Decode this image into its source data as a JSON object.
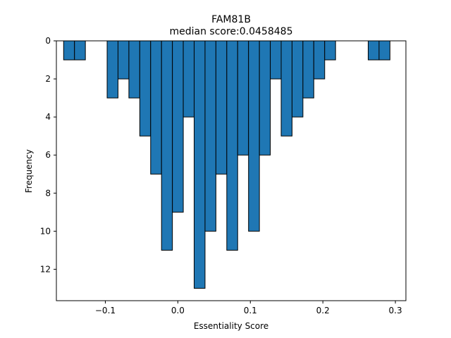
{
  "chart_data": {
    "type": "bar",
    "title": "FAM81B",
    "subtitle": "median score:0.0458485",
    "xlabel": "Essentiality Score",
    "ylabel": "Frequency",
    "xlim": [
      -0.1675,
      0.3145
    ],
    "ylim": [
      0,
      13.65
    ],
    "y_inverted": true,
    "grid": false,
    "bar_color": "#1f77b4",
    "edge_color": "#000000",
    "bin_width": 0.015,
    "xticks": [
      -0.1,
      0.0,
      0.1,
      0.2,
      0.3
    ],
    "xtick_labels": [
      "−0.1",
      "0.0",
      "0.1",
      "0.2",
      "0.3"
    ],
    "yticks": [
      0,
      2,
      4,
      6,
      8,
      10,
      12
    ],
    "ytick_labels": [
      "0",
      "2",
      "4",
      "6",
      "8",
      "10",
      "12"
    ],
    "bins": [
      {
        "x0": -0.1575,
        "x1": -0.1425,
        "count": 1
      },
      {
        "x0": -0.1425,
        "x1": -0.1275,
        "count": 1
      },
      {
        "x0": -0.0975,
        "x1": -0.0825,
        "count": 3
      },
      {
        "x0": -0.0825,
        "x1": -0.0675,
        "count": 2
      },
      {
        "x0": -0.0675,
        "x1": -0.0525,
        "count": 3
      },
      {
        "x0": -0.0525,
        "x1": -0.0375,
        "count": 5
      },
      {
        "x0": -0.0375,
        "x1": -0.0225,
        "count": 7
      },
      {
        "x0": -0.0225,
        "x1": -0.0075,
        "count": 11
      },
      {
        "x0": -0.0075,
        "x1": 0.0075,
        "count": 9
      },
      {
        "x0": 0.0075,
        "x1": 0.0225,
        "count": 4
      },
      {
        "x0": 0.0225,
        "x1": 0.0375,
        "count": 13
      },
      {
        "x0": 0.0375,
        "x1": 0.0525,
        "count": 10
      },
      {
        "x0": 0.0525,
        "x1": 0.0675,
        "count": 7
      },
      {
        "x0": 0.0675,
        "x1": 0.0825,
        "count": 11
      },
      {
        "x0": 0.0825,
        "x1": 0.0975,
        "count": 6
      },
      {
        "x0": 0.0975,
        "x1": 0.1125,
        "count": 10
      },
      {
        "x0": 0.1125,
        "x1": 0.1275,
        "count": 6
      },
      {
        "x0": 0.1275,
        "x1": 0.1425,
        "count": 2
      },
      {
        "x0": 0.1425,
        "x1": 0.1575,
        "count": 5
      },
      {
        "x0": 0.1575,
        "x1": 0.1725,
        "count": 4
      },
      {
        "x0": 0.1725,
        "x1": 0.1875,
        "count": 3
      },
      {
        "x0": 0.1875,
        "x1": 0.2025,
        "count": 2
      },
      {
        "x0": 0.2025,
        "x1": 0.2175,
        "count": 1
      },
      {
        "x0": 0.2625,
        "x1": 0.2775,
        "count": 1
      },
      {
        "x0": 0.2775,
        "x1": 0.2925,
        "count": 1
      }
    ]
  }
}
